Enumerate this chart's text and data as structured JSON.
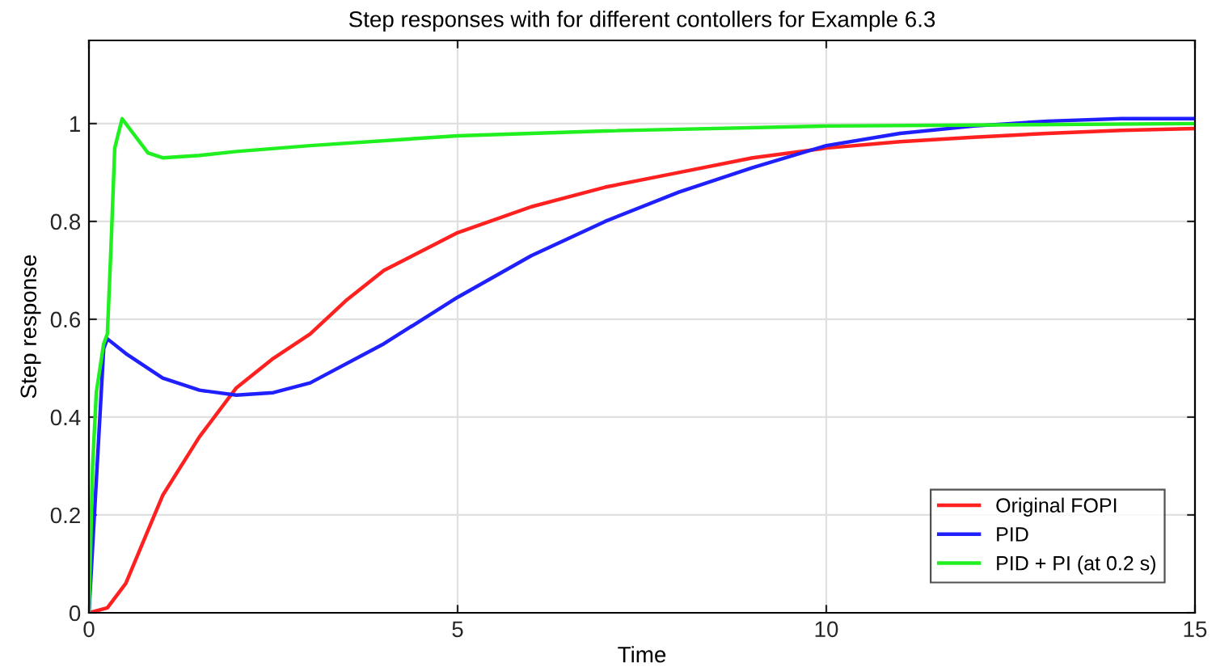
{
  "chart_data": {
    "type": "line",
    "title": "Step responses with for different contollers for Example 6.3",
    "xlabel": "Time",
    "ylabel": "Step response",
    "xlim": [
      0,
      15
    ],
    "ylim": [
      0,
      1.17
    ],
    "xticks": [
      0,
      5,
      10,
      15
    ],
    "yticks": [
      0,
      0.2,
      0.4,
      0.6,
      0.8,
      1
    ],
    "grid": true,
    "legend": "bottom right",
    "line_style": "solid",
    "marker": "none",
    "series": [
      {
        "name": "Original FOPI",
        "color": "#ff2020",
        "x": [
          0,
          0.25,
          0.5,
          0.75,
          1,
          1.5,
          2,
          2.5,
          3,
          3.5,
          4,
          5,
          6,
          7,
          8,
          9,
          10,
          11,
          12,
          13,
          14,
          15
        ],
        "values": [
          0,
          0.01,
          0.06,
          0.15,
          0.24,
          0.36,
          0.46,
          0.52,
          0.57,
          0.64,
          0.7,
          0.777,
          0.83,
          0.87,
          0.9,
          0.93,
          0.95,
          0.963,
          0.972,
          0.98,
          0.986,
          0.99
        ]
      },
      {
        "name": "PID",
        "color": "#2020ff",
        "x": [
          0,
          0.2,
          0.25,
          0.5,
          1,
          1.5,
          2,
          2.5,
          3,
          4,
          5,
          6,
          7,
          8,
          9,
          10,
          11,
          12,
          13,
          14,
          15
        ],
        "values": [
          0,
          0.54,
          0.56,
          0.53,
          0.48,
          0.455,
          0.445,
          0.45,
          0.47,
          0.55,
          0.645,
          0.73,
          0.8,
          0.86,
          0.91,
          0.955,
          0.98,
          0.995,
          1.005,
          1.01,
          1.01
        ]
      },
      {
        "name": "PID + PI (at 0.2 s)",
        "color": "#20f020",
        "x": [
          0,
          0.05,
          0.1,
          0.2,
          0.25,
          0.3,
          0.35,
          0.45,
          0.6,
          0.8,
          1,
          1.5,
          2,
          3,
          5,
          7,
          10,
          15
        ],
        "values": [
          0,
          0.3,
          0.45,
          0.55,
          0.57,
          0.75,
          0.95,
          1.01,
          0.98,
          0.94,
          0.93,
          0.935,
          0.943,
          0.955,
          0.975,
          0.985,
          0.995,
          1.0
        ]
      }
    ]
  }
}
